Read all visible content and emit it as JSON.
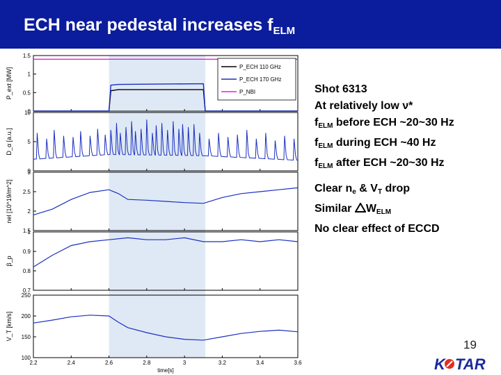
{
  "slide": {
    "title_prefix": "ECH near pedestal increases f",
    "title_sub": "ELM",
    "page_number": "19",
    "logo_text": "KSTAR"
  },
  "text_block_1": [
    {
      "pre": "Shot 6313",
      "sub": "",
      "post": ""
    },
    {
      "pre": "At relatively low ν*",
      "sub": "",
      "post": ""
    },
    {
      "pre": "f",
      "sub": "ELM",
      "post": " before ECH ~20~30 Hz"
    },
    {
      "pre": "f",
      "sub": "ELM",
      "post": " during ECH ~40 Hz"
    },
    {
      "pre": "f",
      "sub": "ELM",
      "post": " after ECH ~20~30 Hz"
    }
  ],
  "text_block_2": [
    {
      "pre": "Clear n",
      "sub": "e",
      "post": " & V",
      "sub2": "T",
      "post2": " drop"
    },
    {
      "pre": "Similar ",
      "delta": true,
      "after_delta": "W",
      "sub": "ELM",
      "post": ""
    },
    {
      "pre": "No clear effect of ECCD",
      "sub": "",
      "post": ""
    }
  ],
  "chart_data": {
    "type": "line",
    "xlabel": "time[s]",
    "x_ticks": [
      "2.2",
      "2.4",
      "2.6",
      "2.8",
      "3",
      "3.2",
      "3.4",
      "3.6"
    ],
    "xlim": [
      2.2,
      3.6
    ],
    "ech_window": [
      2.6,
      3.11
    ],
    "colors": {
      "blue": "#1a2fc0",
      "black": "#000000",
      "magenta": "#e020e0",
      "shade": "#dfe9f5"
    },
    "panels": [
      {
        "id": "power",
        "ylabel": "P_ext [MW]",
        "ylim": [
          0,
          1.5
        ],
        "y_ticks": [
          "1.5",
          "1",
          "0.5",
          "0"
        ],
        "legend": [
          {
            "label": "P_ECH 110 GHz",
            "color": "#000000"
          },
          {
            "label": "P_ECH 170 GHz",
            "color": "#1a2fc0"
          },
          {
            "label": "P_NBI",
            "color": "#e020e0"
          }
        ],
        "series": [
          {
            "name": "P_ECH 110 GHz",
            "color": "#000000",
            "x": [
              2.2,
              2.6,
              2.61,
              2.65,
              3.1,
              3.11,
              3.6
            ],
            "y": [
              0,
              0,
              0.55,
              0.58,
              0.58,
              0,
              0
            ]
          },
          {
            "name": "P_ECH 170 GHz",
            "color": "#1a2fc0",
            "x": [
              2.2,
              2.6,
              2.61,
              2.65,
              3.1,
              3.11,
              3.6
            ],
            "y": [
              0,
              0,
              0.7,
              0.72,
              0.74,
              0,
              0
            ]
          },
          {
            "name": "P_NBI",
            "color": "#e020e0",
            "x": [
              2.2,
              3.6
            ],
            "y": [
              1.4,
              1.4
            ]
          }
        ]
      },
      {
        "id": "dalpha",
        "ylabel": "D_α [a.u.]",
        "ylim": [
          0,
          10
        ],
        "y_ticks": [
          "10",
          "5",
          "0"
        ],
        "baseline": [
          [
            2.2,
            2.0
          ],
          [
            2.6,
            2.8
          ],
          [
            3.1,
            2.6
          ],
          [
            3.6,
            1.8
          ]
        ],
        "elm_times": [
          2.22,
          2.27,
          2.31,
          2.36,
          2.41,
          2.45,
          2.5,
          2.54,
          2.58,
          2.61,
          2.64,
          2.66,
          2.69,
          2.72,
          2.74,
          2.77,
          2.8,
          2.83,
          2.85,
          2.88,
          2.91,
          2.94,
          2.97,
          2.99,
          3.02,
          3.05,
          3.08,
          3.13,
          3.18,
          3.23,
          3.28,
          3.33,
          3.38,
          3.43,
          3.48,
          3.53,
          3.58
        ],
        "elm_peaks": [
          6.5,
          5.5,
          7.0,
          6.0,
          5.8,
          6.8,
          6.0,
          7.2,
          6.2,
          7.0,
          8.2,
          6.5,
          7.5,
          8.5,
          6.8,
          7.2,
          8.8,
          6.5,
          7.8,
          8.2,
          7.0,
          8.5,
          7.2,
          8.0,
          7.5,
          8.0,
          6.5,
          5.5,
          6.5,
          5.8,
          6.2,
          7.0,
          5.5,
          6.5,
          5.2,
          6.0,
          5.5
        ]
      },
      {
        "id": "ne",
        "ylabel": "nel [10^19/m^2]",
        "ylim": [
          1.5,
          3
        ],
        "y_ticks": [
          "3",
          "2.5",
          "2",
          "1.5"
        ],
        "series": [
          {
            "name": "",
            "color": "#1a2fc0",
            "x": [
              2.2,
              2.3,
              2.4,
              2.5,
              2.6,
              2.65,
              2.7,
              2.8,
              2.9,
              3.0,
              3.1,
              3.2,
              3.3,
              3.4,
              3.5,
              3.6
            ],
            "y": [
              1.9,
              2.05,
              2.3,
              2.48,
              2.55,
              2.45,
              2.3,
              2.28,
              2.25,
              2.22,
              2.2,
              2.35,
              2.45,
              2.5,
              2.55,
              2.6
            ]
          }
        ]
      },
      {
        "id": "betap",
        "ylabel": "β_p",
        "ylim": [
          0.7,
          1
        ],
        "y_ticks": [
          "1",
          "0.9",
          "0.8",
          "0.7"
        ],
        "series": [
          {
            "name": "",
            "color": "#1a2fc0",
            "x": [
              2.2,
              2.3,
              2.4,
              2.5,
              2.6,
              2.7,
              2.8,
              2.9,
              3.0,
              3.1,
              3.2,
              3.3,
              3.4,
              3.5,
              3.6
            ],
            "y": [
              0.82,
              0.88,
              0.93,
              0.95,
              0.96,
              0.97,
              0.96,
              0.96,
              0.97,
              0.95,
              0.95,
              0.96,
              0.95,
              0.96,
              0.95
            ]
          }
        ]
      },
      {
        "id": "vt",
        "ylabel": "V_T [km/s]",
        "ylim": [
          100,
          250
        ],
        "y_ticks": [
          "250",
          "200",
          "150",
          "100"
        ],
        "series": [
          {
            "name": "",
            "color": "#1a2fc0",
            "x": [
              2.2,
              2.3,
              2.4,
              2.5,
              2.6,
              2.65,
              2.7,
              2.8,
              2.9,
              3.0,
              3.1,
              3.2,
              3.3,
              3.4,
              3.5,
              3.6
            ],
            "y": [
              183,
              190,
              198,
              202,
              200,
              185,
              172,
              160,
              150,
              144,
              142,
              150,
              158,
              163,
              166,
              162
            ]
          }
        ]
      }
    ]
  }
}
